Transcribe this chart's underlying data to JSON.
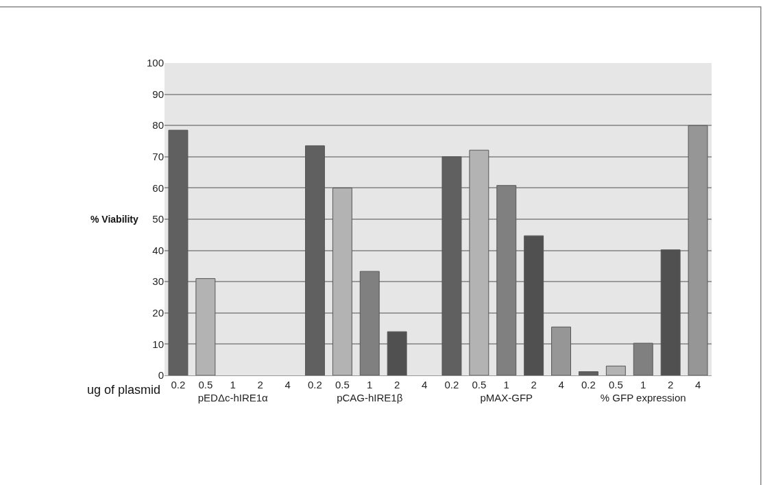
{
  "chart_data": {
    "type": "bar",
    "ylabel": "% Viability",
    "xlabel": "ug of plasmid",
    "categories": [
      "pEDΔc-hIRE1α",
      "pCAG-hIRE1β",
      "pMAX-GFP",
      "% GFP expression"
    ],
    "series": [
      {
        "name": "0.2",
        "color": "#606060",
        "values": [
          78.5,
          73.5,
          70,
          1.2
        ]
      },
      {
        "name": "0.5",
        "color": "#b3b3b3",
        "values": [
          31,
          60,
          72.1,
          3
        ]
      },
      {
        "name": "1",
        "color": "#808080",
        "values": [
          null,
          33.3,
          60.8,
          10.3
        ]
      },
      {
        "name": "2",
        "color": "#505050",
        "values": [
          null,
          14,
          44.7,
          40.2
        ]
      },
      {
        "name": "4",
        "color": "#969696",
        "values": [
          null,
          null,
          15.5,
          80
        ]
      }
    ],
    "ylim": [
      0,
      100
    ],
    "yticks": [
      0,
      10,
      20,
      30,
      40,
      50,
      60,
      70,
      80,
      90,
      100
    ],
    "grid": "y",
    "legend": false
  }
}
